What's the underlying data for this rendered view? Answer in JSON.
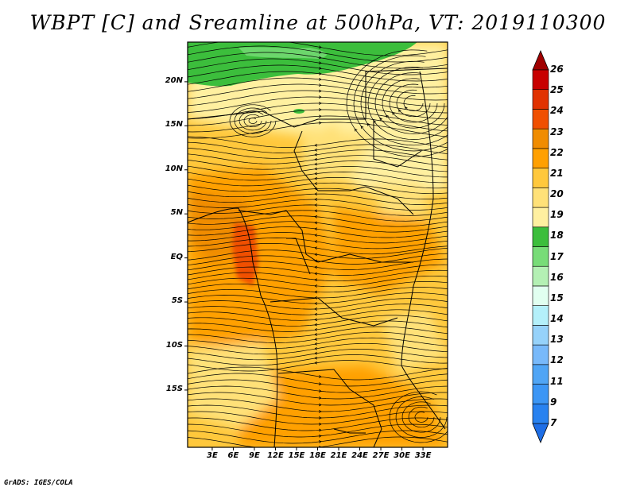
{
  "title": "WBPT [C] and Sreamline at 500hPa, VT: 2019110300",
  "credit": "GrADS: IGES/COLA",
  "map": {
    "lat_min": -21.5,
    "lat_max": 24.5,
    "lon_min": -0.5,
    "lon_max": 36.5,
    "lat_labels": [
      {
        "lat": 20,
        "text": "20N"
      },
      {
        "lat": 15,
        "text": "15N"
      },
      {
        "lat": 10,
        "text": "10N"
      },
      {
        "lat": 5,
        "text": "5N"
      },
      {
        "lat": 0,
        "text": "EQ"
      },
      {
        "lat": -5,
        "text": "5S"
      },
      {
        "lat": -10,
        "text": "10S"
      },
      {
        "lat": -15,
        "text": "15S"
      }
    ],
    "lon_labels": [
      {
        "lon": 3,
        "text": "3E"
      },
      {
        "lon": 6,
        "text": "6E"
      },
      {
        "lon": 9,
        "text": "9E"
      },
      {
        "lon": 12,
        "text": "12E"
      },
      {
        "lon": 15,
        "text": "15E"
      },
      {
        "lon": 18,
        "text": "18E"
      },
      {
        "lon": 21,
        "text": "21E"
      },
      {
        "lon": 24,
        "text": "24E"
      },
      {
        "lon": 27,
        "text": "27E"
      },
      {
        "lon": 30,
        "text": "30E"
      },
      {
        "lon": 33,
        "text": "33E"
      }
    ]
  },
  "colorbar": {
    "levels": [
      "7",
      "9",
      "11",
      "12",
      "13",
      "14",
      "15",
      "16",
      "17",
      "18",
      "19",
      "20",
      "21",
      "22",
      "23",
      "24",
      "25",
      "26"
    ],
    "colors": [
      "#1e6ee6",
      "#2882f0",
      "#3c96f5",
      "#50a5f5",
      "#78b9fa",
      "#96d2fa",
      "#b4f0fa",
      "#e1fff0",
      "#b4f0b4",
      "#78dc78",
      "#3cbe3c",
      "#fff0a0",
      "#ffe178",
      "#ffc83c",
      "#ffa000",
      "#f08c00",
      "#f05000",
      "#e13200",
      "#c80000",
      "#a00000"
    ]
  },
  "field": {
    "colors": {
      "green_dark": "#3cbe3c",
      "green_mid": "#78dc78",
      "cream": "#fff0a0",
      "pale": "#ffe178",
      "light_orange": "#ffc83c",
      "orange": "#ffa000",
      "dark_orange": "#f08c00",
      "red_orange": "#f05000"
    }
  }
}
